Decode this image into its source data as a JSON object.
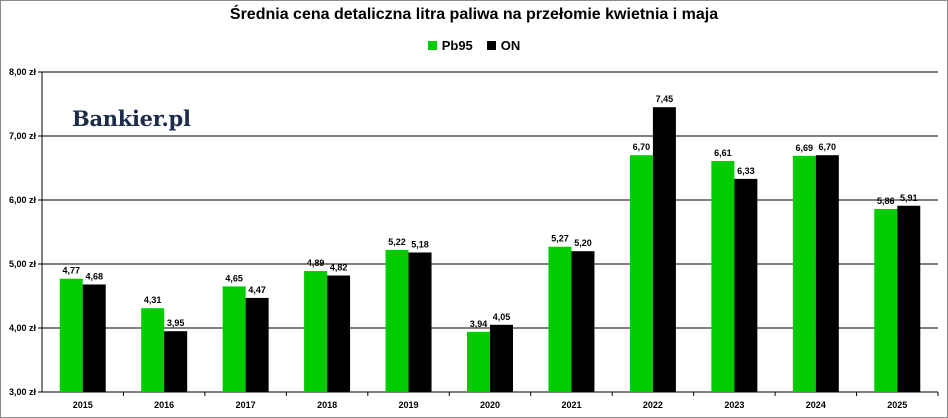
{
  "chart_data": {
    "type": "bar",
    "title": "Średnia cena detaliczna litra paliwa na przełomie kwietnia i maja",
    "categories": [
      "2015",
      "2016",
      "2017",
      "2018",
      "2019",
      "2020",
      "2021",
      "2022",
      "2023",
      "2024",
      "2025"
    ],
    "series": [
      {
        "name": "Pb95",
        "color": "#00cc00",
        "values": [
          4.77,
          4.31,
          4.65,
          4.89,
          5.22,
          3.94,
          5.27,
          6.7,
          6.61,
          6.69,
          5.86
        ],
        "labels": [
          "4,77",
          "4,31",
          "4,65",
          "4,89",
          "5,22",
          "3,94",
          "5,27",
          "6,70",
          "6,61",
          "6,69",
          "5,86"
        ]
      },
      {
        "name": "ON",
        "color": "#000000",
        "values": [
          4.68,
          3.95,
          4.47,
          4.82,
          5.18,
          4.05,
          5.2,
          7.45,
          6.33,
          6.7,
          5.91
        ],
        "labels": [
          "4,68",
          "3,95",
          "4,47",
          "4,82",
          "5,18",
          "4,05",
          "5,20",
          "7,45",
          "6,33",
          "6,70",
          "5,91"
        ]
      }
    ],
    "ylim": [
      3,
      8
    ],
    "yticks": [
      3,
      4,
      5,
      6,
      7,
      8
    ],
    "ytick_labels": [
      "3,00 zł",
      "4,00 zł",
      "5,00 zł",
      "6,00 zł",
      "7,00 zł",
      "8,00 zł"
    ],
    "grid": true,
    "legend_position": "top"
  },
  "watermark": {
    "text": "Bankier.pl"
  }
}
